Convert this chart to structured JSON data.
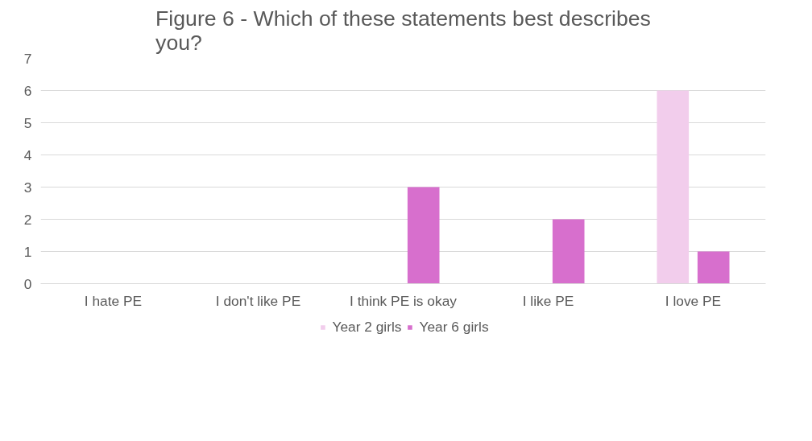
{
  "chart_data": {
    "type": "bar",
    "title": "Figure 6 - Which of these statements best describes you?",
    "categories": [
      "I hate PE",
      "I don't like PE",
      "I think PE is okay",
      "I like PE",
      "I love PE"
    ],
    "series": [
      {
        "name": "Year 2 girls",
        "color": "#f2cdec",
        "values": [
          0,
          0,
          0,
          0,
          6
        ]
      },
      {
        "name": "Year 6 girls",
        "color": "#d76fcd",
        "values": [
          0,
          0,
          3,
          2,
          1
        ]
      }
    ],
    "ylim": [
      0,
      7
    ],
    "yticks": [
      0,
      1,
      2,
      3,
      4,
      5,
      6,
      7
    ],
    "grid": "y",
    "legend": "bottom"
  }
}
